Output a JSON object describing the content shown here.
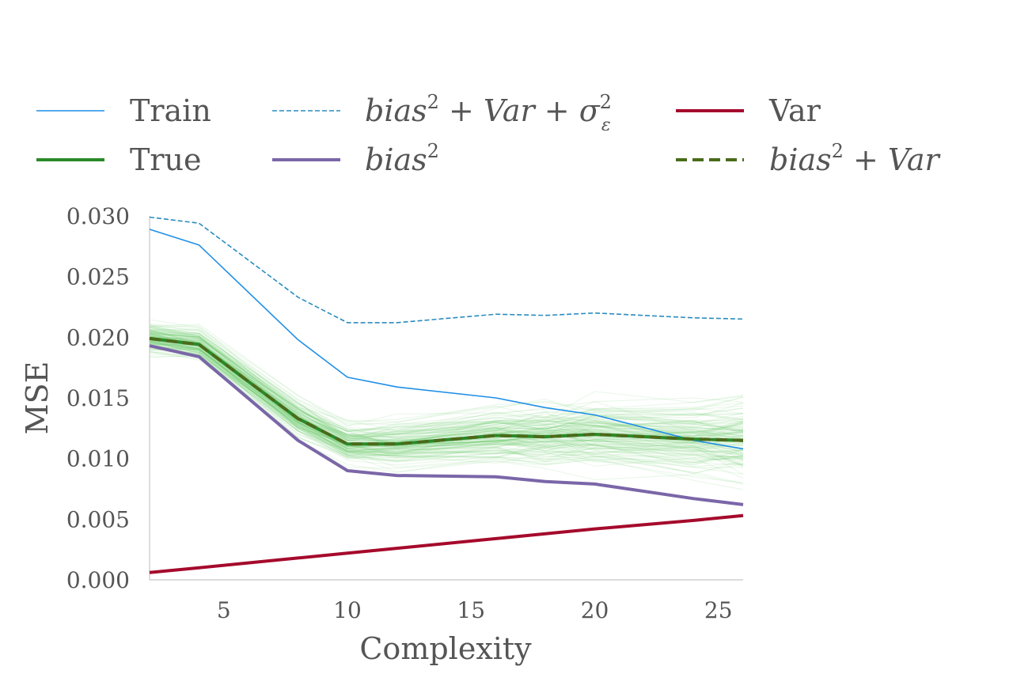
{
  "chart_data": {
    "type": "line",
    "title": "",
    "xlabel": "Complexity",
    "ylabel": "MSE",
    "xlim": [
      2,
      26
    ],
    "ylim": [
      0.0,
      0.03
    ],
    "xticks": [
      5,
      10,
      15,
      20,
      25
    ],
    "yticks": [
      0.0,
      0.005,
      0.01,
      0.015,
      0.02,
      0.025,
      0.03
    ],
    "xtick_labels": [
      "5",
      "10",
      "15",
      "20",
      "25"
    ],
    "ytick_labels": [
      "0.000",
      "0.005",
      "0.010",
      "0.015",
      "0.020",
      "0.025",
      "0.030"
    ],
    "grid": false,
    "legend_position": "top",
    "x": [
      2,
      4,
      8,
      10,
      12,
      16,
      18,
      20,
      24,
      26
    ],
    "series": [
      {
        "key": "train",
        "name": "Train",
        "color": "#1f8fe6",
        "style": "solid",
        "width": 1.6,
        "values": [
          0.0289,
          0.0276,
          0.0198,
          0.0167,
          0.0159,
          0.015,
          0.0142,
          0.0136,
          0.0115,
          0.0108
        ]
      },
      {
        "key": "total",
        "name": "bias² + Var + σε²",
        "color": "#2b8cbe",
        "style": "dashed-fine",
        "width": 1.6,
        "values": [
          0.0299,
          0.0294,
          0.0233,
          0.0212,
          0.0212,
          0.0219,
          0.0218,
          0.022,
          0.0216,
          0.0215
        ]
      },
      {
        "key": "var",
        "name": "Var",
        "color": "#a50a2c",
        "style": "solid",
        "width": 4,
        "values": [
          0.0006,
          0.001,
          0.0018,
          0.0022,
          0.0026,
          0.0034,
          0.0038,
          0.0042,
          0.0049,
          0.0053
        ]
      },
      {
        "key": "true",
        "name": "True",
        "color": "#2a8a2a",
        "style": "solid",
        "width": 4,
        "values": [
          0.0199,
          0.0194,
          0.0133,
          0.0112,
          0.0112,
          0.0119,
          0.0118,
          0.012,
          0.0116,
          0.0115
        ]
      },
      {
        "key": "bias2",
        "name": "bias²",
        "color": "#7a66a8",
        "style": "solid",
        "width": 4,
        "values": [
          0.0193,
          0.0184,
          0.0115,
          0.009,
          0.0086,
          0.0085,
          0.0081,
          0.0079,
          0.0067,
          0.0062
        ]
      },
      {
        "key": "bias2_var",
        "name": "bias² + Var",
        "color": "#4a6b1a",
        "style": "dashed",
        "width": 4,
        "values": [
          0.0199,
          0.0194,
          0.0133,
          0.0112,
          0.0112,
          0.0119,
          0.0118,
          0.012,
          0.0116,
          0.0115
        ]
      }
    ],
    "realization_band": {
      "color": "#66cc66",
      "count": 140,
      "center": [
        0.0199,
        0.0194,
        0.0133,
        0.0112,
        0.0112,
        0.0119,
        0.0118,
        0.012,
        0.0116,
        0.0115
      ],
      "spread": [
        0.0011,
        0.0011,
        0.0013,
        0.0014,
        0.0016,
        0.0019,
        0.0021,
        0.0023,
        0.0026,
        0.0028
      ]
    }
  },
  "legend": {
    "items": [
      {
        "key": "train",
        "label": "Train",
        "math": false,
        "sup": ""
      },
      {
        "key": "total",
        "label": "bias",
        "math": true,
        "sup": "2",
        "rest": " + Var + σ",
        "rest_sup": "2",
        "rest_sub": "ε"
      },
      {
        "key": "var",
        "label": "Var",
        "math": false,
        "sup": ""
      },
      {
        "key": "true",
        "label": "True",
        "math": false,
        "sup": ""
      },
      {
        "key": "bias2",
        "label": "bias",
        "math": true,
        "sup": "2"
      },
      {
        "key": "bias2_var",
        "label": "bias",
        "math": true,
        "sup": "2",
        "rest": " + Var"
      }
    ]
  }
}
